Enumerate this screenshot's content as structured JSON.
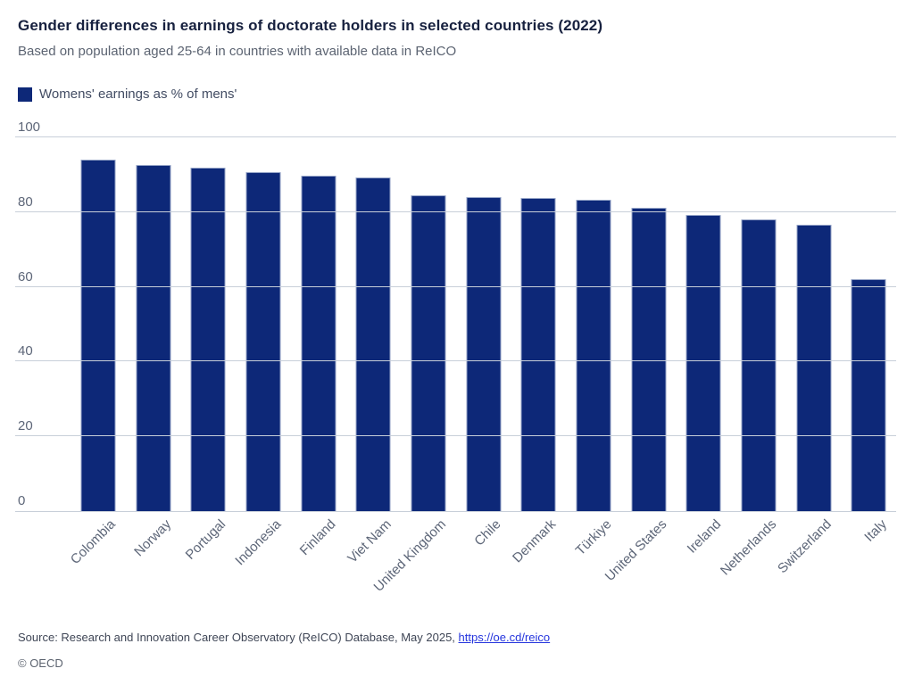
{
  "header": {
    "title": "Gender differences in earnings of doctorate holders in selected countries (2022)",
    "subtitle": "Based on population aged 25-64 in countries with available data in ReICO"
  },
  "legend": {
    "label": "Womens' earnings as % of mens'",
    "swatch_color": "#0d2878"
  },
  "chart_data": {
    "type": "bar",
    "title": "Gender differences in earnings of doctorate holders in selected countries (2022)",
    "subtitle": "Based on population aged 25-64 in countries with available data in ReICO",
    "legend_entries": [
      "Womens' earnings as % of mens'"
    ],
    "categories": [
      "Colombia",
      "Norway",
      "Portugal",
      "Indonesia",
      "Finland",
      "Viet Nam",
      "United Kingdom",
      "Chile",
      "Denmark",
      "Türkiye",
      "United States",
      "Ireland",
      "Netherlands",
      "Switzerland",
      "Italy"
    ],
    "values": [
      94.0,
      92.5,
      91.8,
      90.6,
      89.8,
      89.3,
      84.5,
      84.1,
      83.7,
      83.4,
      81.2,
      79.2,
      78.0,
      76.6,
      62.0
    ],
    "ylabel": "",
    "xlabel": "",
    "ylim": [
      0,
      100
    ],
    "yticks": [
      0,
      20,
      40,
      60,
      80,
      100
    ],
    "grid": "horizontal",
    "legend_position": "top-left",
    "bar_color": "#0d2878",
    "bar_border_color": "#93a2c6"
  },
  "footer": {
    "source_prefix": "Source: Research and Innovation Career Observatory (ReICO) Database, May 2025, ",
    "source_link": "https://oe.cd/reico",
    "copyright": "© OECD"
  }
}
